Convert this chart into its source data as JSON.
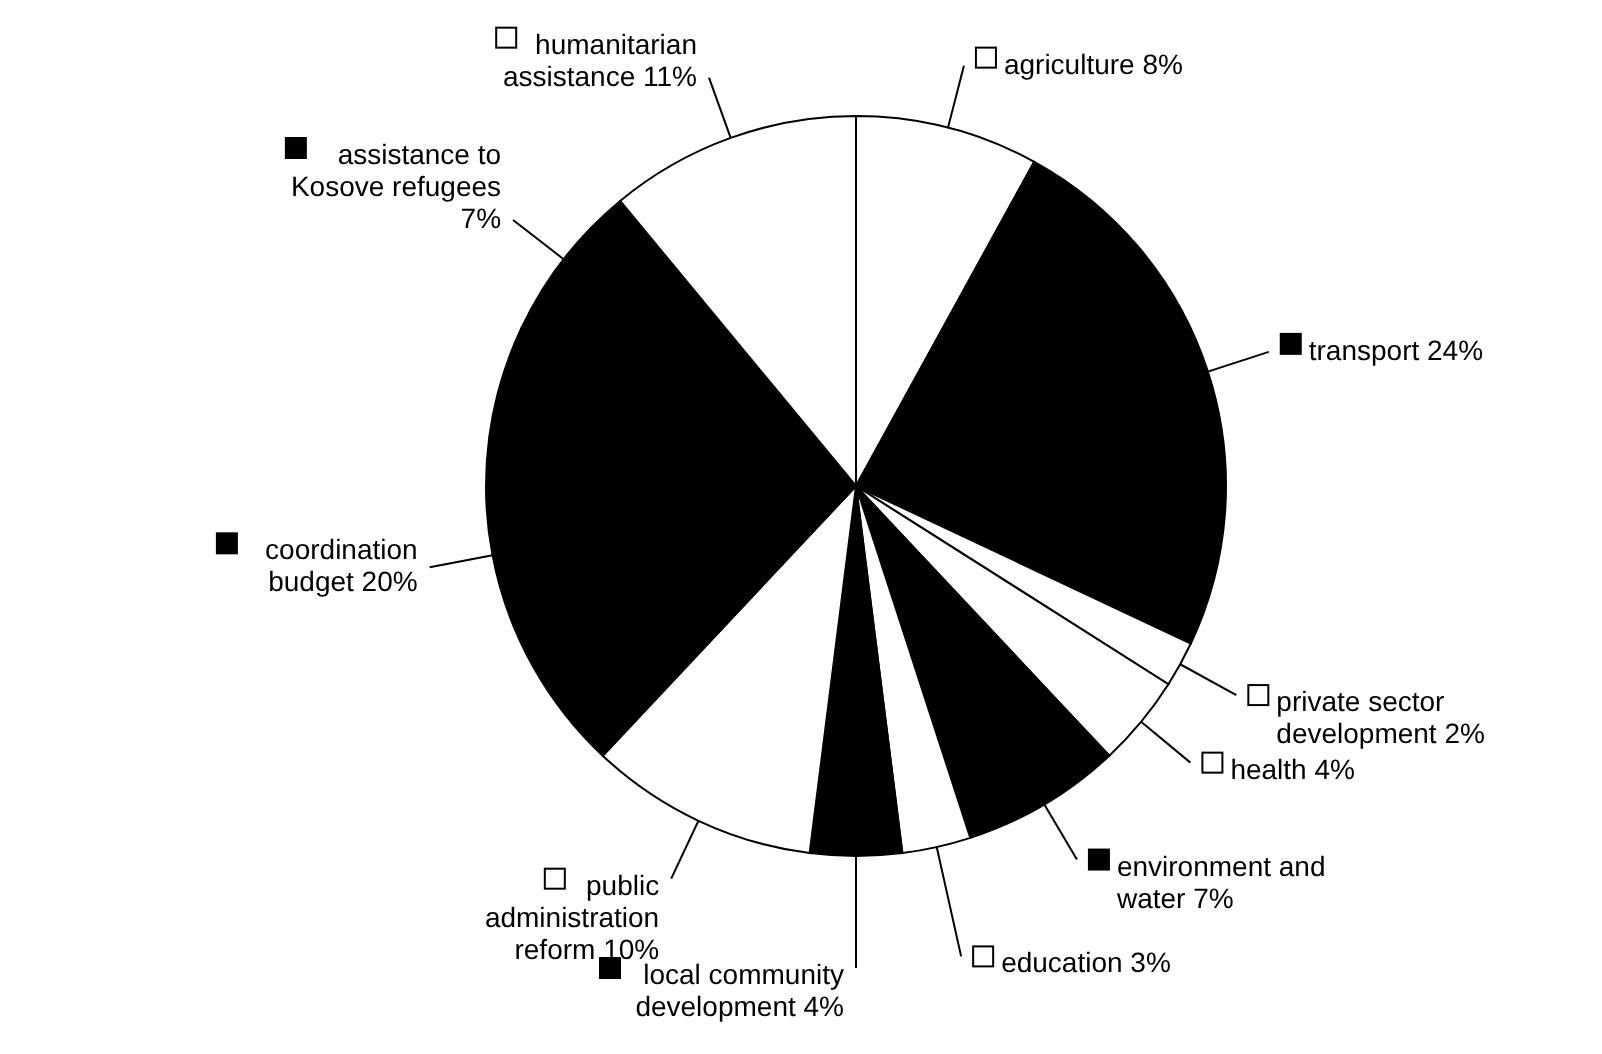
{
  "chart_data": {
    "type": "pie",
    "legend": "right",
    "categories": [
      "agriculture",
      "transport",
      "private sector development",
      "health",
      "environment and water",
      "education",
      "local community development",
      "public administration reform",
      "coordination budget",
      "assistance to Kosove refugees",
      "humanitarian assistance"
    ],
    "values": [
      8,
      24,
      2,
      4,
      7,
      3,
      4,
      10,
      20,
      7,
      11
    ],
    "value_labels": [
      "8%",
      "24%",
      "2%",
      "4%",
      "7%",
      "3%",
      "4%",
      "10%",
      "20%",
      "7%",
      "11%"
    ],
    "colors": [
      "#ffffff",
      "#000000",
      "#ffffff",
      "#ffffff",
      "#000000",
      "#ffffff",
      "#000000",
      "#ffffff",
      "#000000",
      "#000000",
      "#ffffff"
    ]
  }
}
